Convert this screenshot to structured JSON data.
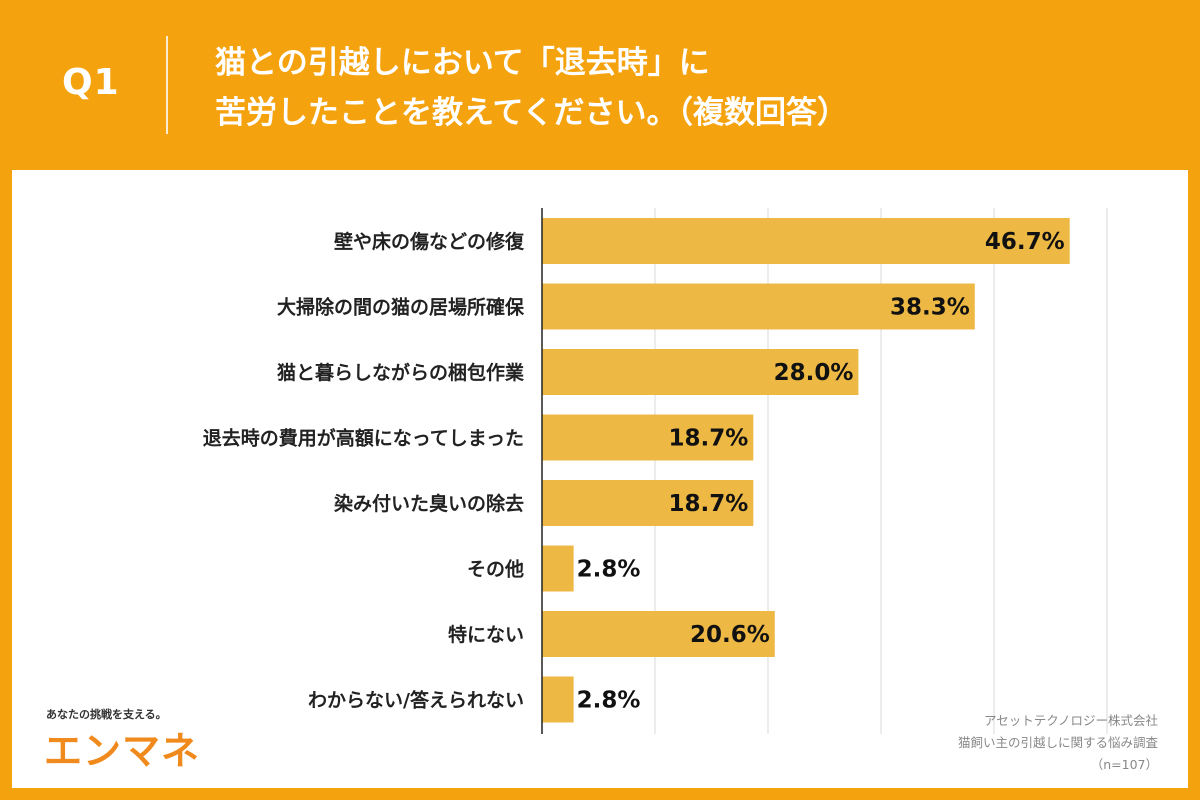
{
  "header": {
    "question_number": "Q1",
    "title_line1": "猫との引越しにおいて「退去時」に",
    "title_line2": "苦労したことを教えてください。（複数回答）"
  },
  "branding": {
    "tagline": "あなたの挑戦を支える。",
    "logo": "エンマネ"
  },
  "credit": {
    "company": "アセットテクノロジー株式会社",
    "survey": "猫飼い主の引越しに関する悩み調査",
    "sample": "（n=107）"
  },
  "colors": {
    "background": "#f5a20f",
    "bar": "#edb944",
    "grid": "#d9d9d9"
  },
  "chart_data": {
    "type": "bar",
    "orientation": "horizontal",
    "categories": [
      "壁や床の傷などの修復",
      "大掃除の間の猫の居場所確保",
      "猫と暮らしながらの梱包作業",
      "退去時の費用が高額になってしまった",
      "染み付いた臭いの除去",
      "その他",
      "特にない",
      "わからない/答えられない"
    ],
    "values": [
      46.7,
      38.3,
      28.0,
      18.7,
      18.7,
      2.8,
      20.6,
      2.8
    ],
    "value_labels": [
      "46.7%",
      "38.3%",
      "28.0%",
      "18.7%",
      "18.7%",
      "2.8%",
      "20.6%",
      "2.8%"
    ],
    "unit": "%",
    "xlim": [
      0,
      50
    ],
    "grid": true
  }
}
